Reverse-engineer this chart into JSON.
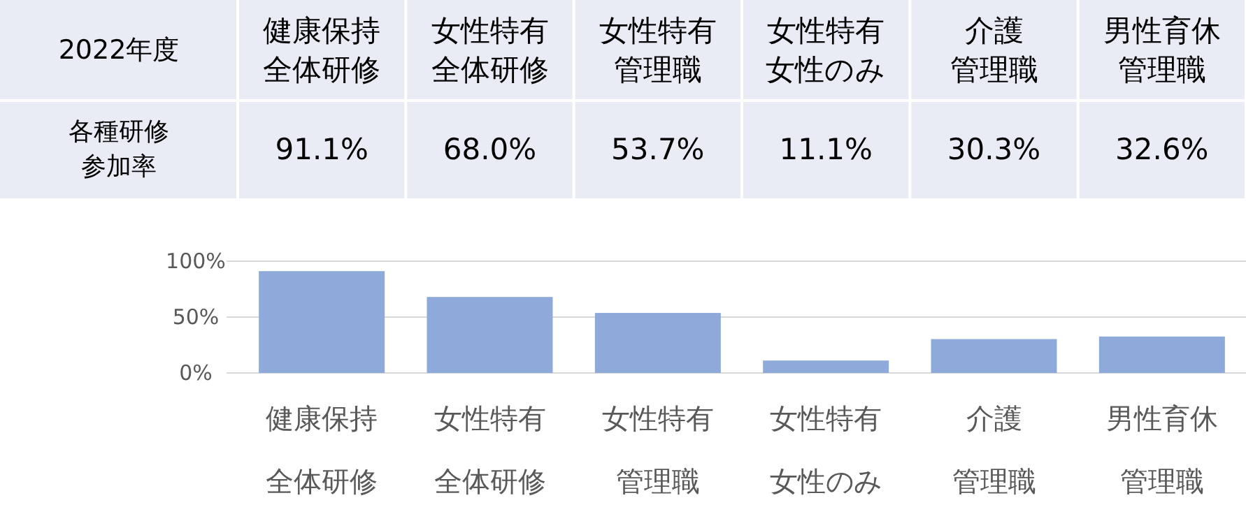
{
  "chart_data": {
    "type": "bar",
    "title": "2022年度",
    "ylabel": "各種研修参加率",
    "categories": [
      "健康保持全体研修",
      "女性特有全体研修",
      "女性特有管理職",
      "女性特有女性のみ",
      "介護管理職",
      "男性育休管理職"
    ],
    "values": [
      91.1,
      68.0,
      53.7,
      11.1,
      30.3,
      32.6
    ],
    "value_labels": [
      "91.1%",
      "68.0%",
      "53.7%",
      "11.1%",
      "30.3%",
      "32.6%"
    ],
    "color": "#8eaadb",
    "ylim": [
      0,
      100
    ],
    "yticks": [
      {
        "value": 0,
        "label": "0%"
      },
      {
        "value": 50,
        "label": "50%"
      },
      {
        "value": 100,
        "label": "100%"
      }
    ],
    "grid": "y"
  }
}
